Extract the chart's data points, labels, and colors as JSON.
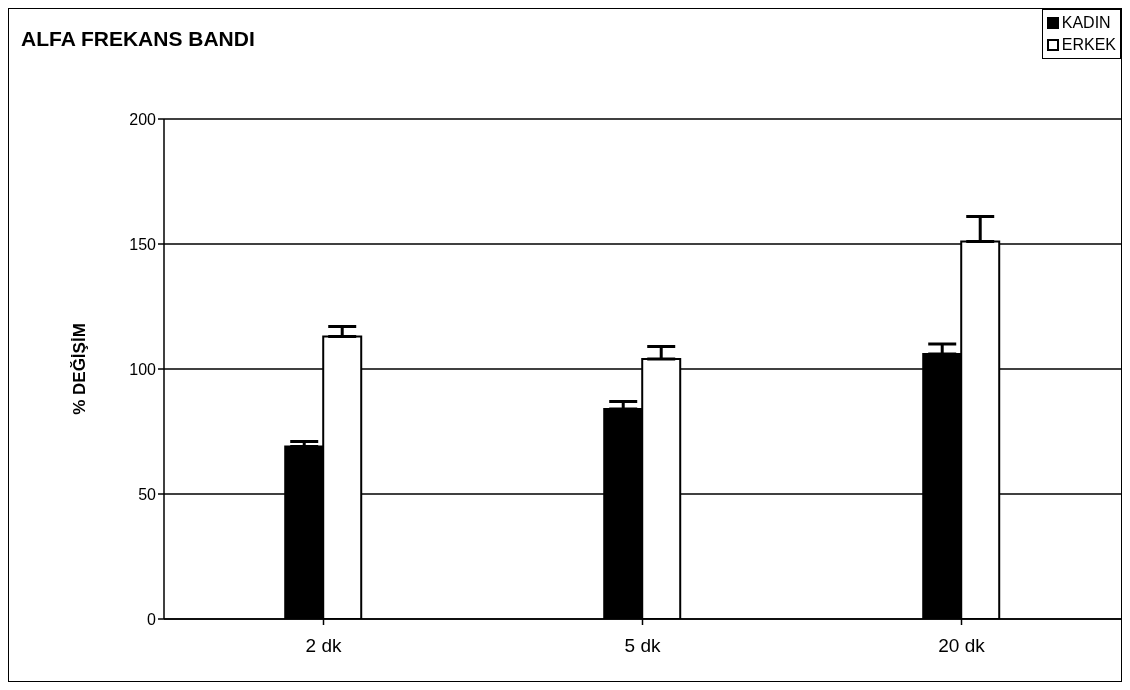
{
  "chart_data": {
    "type": "bar",
    "title": "ALFA FREKANS BANDI",
    "ylabel": "% DEĞİŞİM",
    "categories": [
      "2 dk",
      "5 dk",
      "20 dk"
    ],
    "series": [
      {
        "name": "KADIN",
        "color": "#000000",
        "values": [
          69,
          84,
          106
        ],
        "errors": [
          [
            69,
            71
          ],
          [
            84,
            87
          ],
          [
            106,
            110
          ]
        ]
      },
      {
        "name": "ERKEK",
        "color": "#ffffff",
        "values": [
          113,
          104,
          151
        ],
        "errors": [
          [
            113,
            117
          ],
          [
            104,
            109
          ],
          [
            151,
            161
          ]
        ]
      }
    ],
    "ylim": [
      0,
      200
    ],
    "yticks": [
      0,
      50,
      100,
      150,
      200
    ],
    "grid": "y",
    "legend": "top right"
  }
}
